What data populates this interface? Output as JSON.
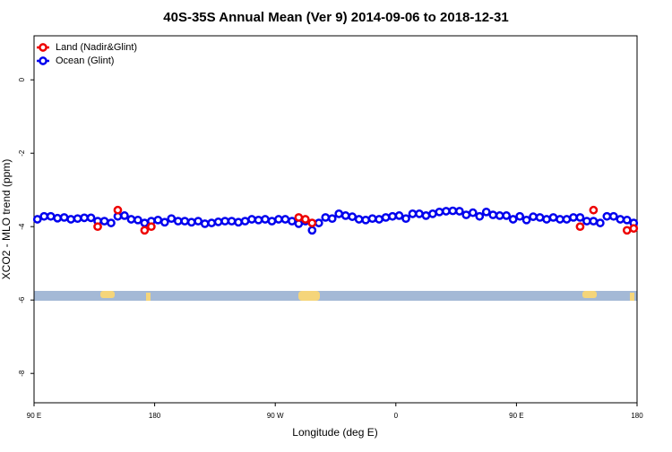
{
  "chart_data": {
    "type": "scatter",
    "title": "40S-35S Annual Mean (Ver 9)   2014-09-06 to 2018-12-31",
    "x_label": "Longitude (deg E)",
    "y_label": "XCO2 - MLO trend (ppm)",
    "xlim": [
      90,
      540
    ],
    "ylim": [
      -8.8,
      1.2
    ],
    "xticks": [
      {
        "value": 90,
        "label": "90 E"
      },
      {
        "value": 180,
        "label": "180"
      },
      {
        "value": 270,
        "label": "90 W"
      },
      {
        "value": 360,
        "label": "0"
      },
      {
        "value": 450,
        "label": "90 E"
      },
      {
        "value": 540,
        "label": "180"
      }
    ],
    "yticks": [
      -8,
      -6,
      -4,
      -2,
      0
    ],
    "legend": "top-left",
    "series": [
      {
        "name": "Land (Nadir&Glint)",
        "color": "#ee0000",
        "x": [
          137.5,
          152.5,
          172.5,
          177.5,
          287.5,
          292.5,
          297.5,
          497.5,
          507.5,
          532.5,
          537.5
        ],
        "values": [
          -4.0,
          -3.55,
          -4.1,
          -4.0,
          -3.75,
          -3.8,
          -3.9,
          -4.0,
          -3.55,
          -4.1,
          -4.05
        ]
      },
      {
        "name": "Ocean (Glint)",
        "color": "#0000ee",
        "x": [
          92.5,
          97.5,
          102.5,
          107.5,
          112.5,
          117.5,
          122.5,
          127.5,
          132.5,
          137.5,
          142.5,
          147.5,
          152.5,
          157.5,
          162.5,
          167.5,
          172.5,
          177.5,
          182.5,
          187.5,
          192.5,
          197.5,
          202.5,
          207.5,
          212.5,
          217.5,
          222.5,
          227.5,
          232.5,
          237.5,
          242.5,
          247.5,
          252.5,
          257.5,
          262.5,
          267.5,
          272.5,
          277.5,
          282.5,
          287.5,
          292.5,
          297.5,
          302.5,
          307.5,
          312.5,
          317.5,
          322.5,
          327.5,
          332.5,
          337.5,
          342.5,
          347.5,
          352.5,
          357.5,
          362.5,
          367.5,
          372.5,
          377.5,
          382.5,
          387.5,
          392.5,
          397.5,
          402.5,
          407.5,
          412.5,
          417.5,
          422.5,
          427.5,
          432.5,
          437.5,
          442.5,
          447.5,
          452.5,
          457.5,
          462.5,
          467.5,
          472.5,
          477.5,
          482.5,
          487.5,
          492.5,
          497.5,
          502.5,
          507.5,
          512.5,
          517.5,
          522.5,
          527.5,
          532.5,
          537.5
        ],
        "values": [
          -3.8,
          -3.72,
          -3.72,
          -3.77,
          -3.75,
          -3.8,
          -3.78,
          -3.76,
          -3.76,
          -3.85,
          -3.85,
          -3.9,
          -3.72,
          -3.7,
          -3.8,
          -3.82,
          -3.9,
          -3.85,
          -3.82,
          -3.88,
          -3.78,
          -3.85,
          -3.85,
          -3.88,
          -3.85,
          -3.92,
          -3.9,
          -3.87,
          -3.85,
          -3.85,
          -3.88,
          -3.85,
          -3.8,
          -3.82,
          -3.8,
          -3.85,
          -3.8,
          -3.8,
          -3.85,
          -3.92,
          -3.85,
          -4.1,
          -3.9,
          -3.75,
          -3.78,
          -3.65,
          -3.7,
          -3.73,
          -3.8,
          -3.82,
          -3.78,
          -3.8,
          -3.75,
          -3.72,
          -3.7,
          -3.78,
          -3.65,
          -3.65,
          -3.7,
          -3.65,
          -3.6,
          -3.58,
          -3.57,
          -3.58,
          -3.68,
          -3.62,
          -3.72,
          -3.6,
          -3.68,
          -3.7,
          -3.7,
          -3.8,
          -3.72,
          -3.82,
          -3.73,
          -3.75,
          -3.8,
          -3.75,
          -3.8,
          -3.8,
          -3.75,
          -3.75,
          -3.85,
          -3.85,
          -3.9,
          -3.72,
          -3.72,
          -3.8,
          -3.82,
          -3.9
        ]
      }
    ]
  }
}
